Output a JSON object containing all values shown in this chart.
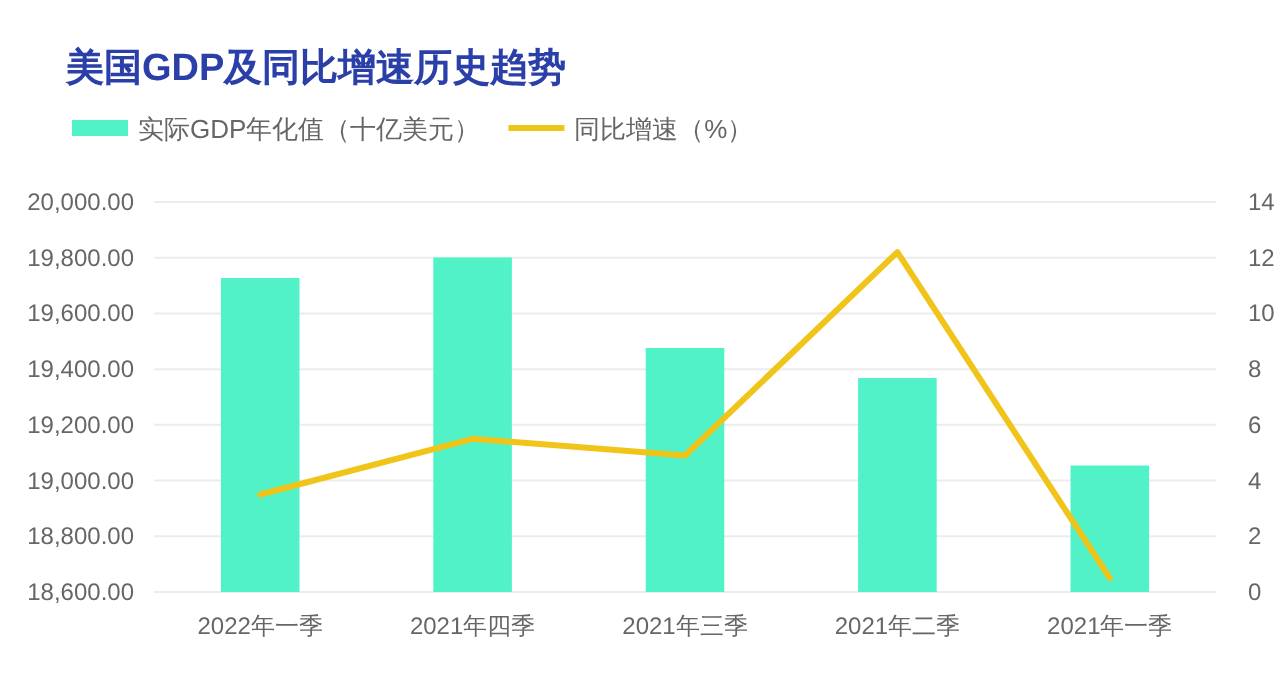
{
  "chart_data": {
    "type": "bar",
    "title": "美国GDP及同比增速历史趋势",
    "categories": [
      "2022年一季",
      "2021年四季",
      "2021年三季",
      "2021年二季",
      "2021年一季"
    ],
    "series": [
      {
        "name": "实际GDP年化值（十亿美元）",
        "color": "#52f2c8",
        "values": [
          19727,
          19801,
          19476,
          19368,
          19054
        ]
      },
      {
        "name": "同比增速（%）",
        "type": "line",
        "axis": "y2",
        "color": "#f0c419",
        "values": [
          3.5,
          5.5,
          4.9,
          12.2,
          0.5
        ]
      }
    ],
    "ylim": [
      18600,
      20000
    ],
    "yticks": [
      {
        "value": 18600,
        "label": "18,600.00"
      },
      {
        "value": 18800,
        "label": "18,800.00"
      },
      {
        "value": 19000,
        "label": "19,000.00"
      },
      {
        "value": 19200,
        "label": "19,200.00"
      },
      {
        "value": 19400,
        "label": "19,400.00"
      },
      {
        "value": 19600,
        "label": "19,600.00"
      },
      {
        "value": 19800,
        "label": "19,800.00"
      },
      {
        "value": 20000,
        "label": "20,000.00"
      }
    ],
    "y2lim": [
      0,
      14
    ],
    "y2ticks": [
      0,
      2,
      4,
      6,
      8,
      10,
      12,
      14
    ],
    "grid": "y",
    "legend": "top left"
  }
}
